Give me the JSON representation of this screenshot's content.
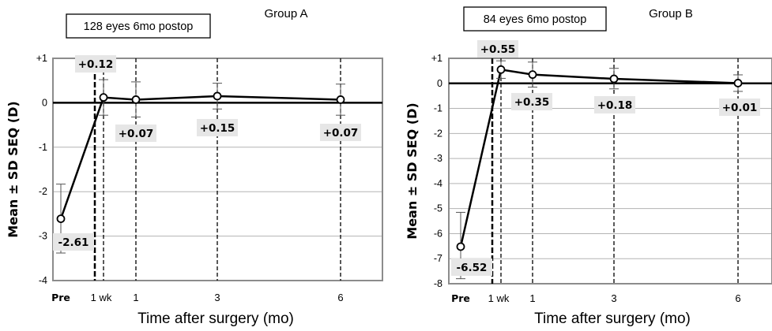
{
  "chart_data": [
    {
      "type": "line",
      "group_title": "Group A",
      "info_box": "128 eyes 6mo postop",
      "ylabel": "Mean ± SD SEQ (D)",
      "xlabel": "Time after surgery (mo)",
      "ylim": [
        -4,
        1
      ],
      "y_ticks": [
        "+1",
        "0",
        "-1",
        "-2",
        "-3",
        "-4"
      ],
      "x_tick_labels": [
        "Pre",
        "1 wk",
        "1",
        "3",
        "6"
      ],
      "grid": "horizontal",
      "points": [
        {
          "x": "Pre",
          "mean": -2.61,
          "sd_low": -3.38,
          "sd_high": -1.83,
          "label": "-2.61"
        },
        {
          "x": "1 wk",
          "mean": 0.12,
          "sd_low": -0.28,
          "sd_high": 0.52,
          "label": "+0.12"
        },
        {
          "x": "1",
          "mean": 0.07,
          "sd_low": -0.32,
          "sd_high": 0.47,
          "label": "+0.07"
        },
        {
          "x": "3",
          "mean": 0.15,
          "sd_low": -0.14,
          "sd_high": 0.44,
          "label": "+0.15"
        },
        {
          "x": "6",
          "mean": 0.07,
          "sd_low": -0.28,
          "sd_high": 0.42,
          "label": "+0.07"
        }
      ]
    },
    {
      "type": "line",
      "group_title": "Group B",
      "info_box": "84 eyes 6mo postop",
      "ylabel": "Mean ± SD SEQ (D)",
      "xlabel": "Time after surgery (mo)",
      "ylim": [
        -8,
        1
      ],
      "y_ticks": [
        "+1",
        "0",
        "-1",
        "-2",
        "-3",
        "-4",
        "-5",
        "-6",
        "-7",
        "-8"
      ],
      "x_tick_labels": [
        "Pre",
        "1 wk",
        "1",
        "3",
        "6"
      ],
      "grid": "horizontal",
      "points": [
        {
          "x": "Pre",
          "mean": -6.52,
          "sd_low": -7.8,
          "sd_high": -5.15,
          "label": "-6.52"
        },
        {
          "x": "1 wk",
          "mean": 0.55,
          "sd_low": 0.2,
          "sd_high": 0.9,
          "label": "+0.55"
        },
        {
          "x": "1",
          "mean": 0.35,
          "sd_low": -0.15,
          "sd_high": 0.85,
          "label": "+0.35"
        },
        {
          "x": "3",
          "mean": 0.18,
          "sd_low": -0.22,
          "sd_high": 0.6,
          "label": "+0.18"
        },
        {
          "x": "6",
          "mean": 0.01,
          "sd_low": -0.32,
          "sd_high": 0.34,
          "label": "+0.01"
        }
      ]
    }
  ]
}
